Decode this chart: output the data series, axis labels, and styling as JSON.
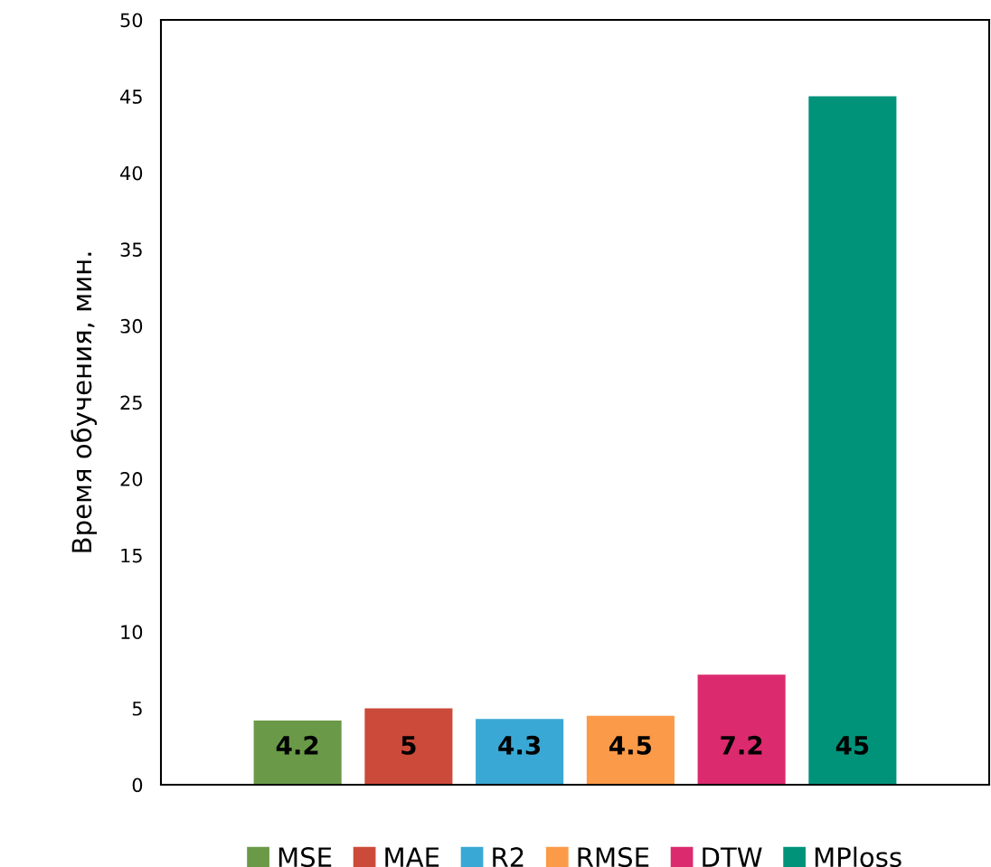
{
  "chart_data": {
    "type": "bar",
    "ylabel": "Время обучения, мин.",
    "categories": [
      null
    ],
    "series": [
      {
        "name": "MSE",
        "color": "#6a9a48",
        "values": [
          4.2
        ]
      },
      {
        "name": "MAE",
        "color": "#cc4a3a",
        "values": [
          5
        ]
      },
      {
        "name": "R2",
        "color": "#3aa8d4",
        "values": [
          4.3
        ]
      },
      {
        "name": "RMSE",
        "color": "#fb9a48",
        "values": [
          4.5
        ]
      },
      {
        "name": "DTW",
        "color": "#dc2a6e",
        "values": [
          7.2
        ]
      },
      {
        "name": "MPloss",
        "color": "#00937a",
        "values": [
          45
        ]
      }
    ],
    "ylim": [
      0,
      50
    ],
    "yticks": [
      0,
      5,
      10,
      15,
      20,
      25,
      30,
      35,
      40,
      45,
      50
    ],
    "grid": false,
    "legend": "bottom",
    "data_labels": true
  }
}
